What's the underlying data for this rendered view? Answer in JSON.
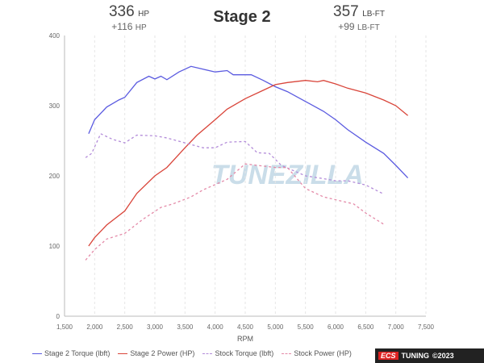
{
  "header": {
    "hp_value": "336",
    "hp_unit": "HP",
    "hp_gain": "+116",
    "hp_gain_unit": "HP",
    "title": "Stage 2",
    "tq_value": "357",
    "tq_unit": "LB-FT",
    "tq_gain": "+99",
    "tq_gain_unit": "LB-FT"
  },
  "watermark": "TUNEZILLA",
  "branding": {
    "logo": "ECS",
    "tuning": "TUNING",
    "copyright": "©2023"
  },
  "chart_data": {
    "type": "line",
    "title": "Stage 2",
    "xlabel": "RPM",
    "ylabel": "",
    "xlim": [
      1500,
      7500
    ],
    "ylim": [
      0,
      400
    ],
    "xticks": [
      1500,
      2000,
      2500,
      3000,
      3500,
      4000,
      4500,
      5000,
      5500,
      6000,
      6500,
      7000,
      7500
    ],
    "xtick_labels": [
      "1,500",
      "2,000",
      "2,500",
      "3,000",
      "3,500",
      "4,000",
      "4,500",
      "5,000",
      "5,500",
      "6,000",
      "6,500",
      "7,000",
      "7,500"
    ],
    "yticks": [
      0,
      100,
      200,
      300,
      400
    ],
    "grid": "vertical dashed",
    "legend": "bottom",
    "series": [
      {
        "name": "Stage 2 Torque (lbft)",
        "color": "#5b5be0",
        "dashed": false,
        "x": [
          1900,
          2000,
          2200,
          2400,
          2500,
          2700,
          2900,
          3000,
          3100,
          3200,
          3400,
          3600,
          3800,
          4000,
          4200,
          4300,
          4600,
          4800,
          5000,
          5200,
          5500,
          5800,
          6000,
          6200,
          6500,
          6800,
          7000,
          7200
        ],
        "y": [
          260,
          280,
          298,
          308,
          312,
          333,
          342,
          338,
          342,
          337,
          348,
          356,
          352,
          348,
          350,
          344,
          344,
          336,
          327,
          320,
          306,
          292,
          280,
          266,
          248,
          232,
          215,
          197
        ]
      },
      {
        "name": "Stage 2 Power (HP)",
        "color": "#d9453a",
        "dashed": false,
        "x": [
          1900,
          2000,
          2200,
          2500,
          2700,
          3000,
          3200,
          3500,
          3700,
          4000,
          4200,
          4500,
          4800,
          5000,
          5200,
          5500,
          5700,
          5800,
          6000,
          6200,
          6500,
          6800,
          7000,
          7200
        ],
        "y": [
          100,
          112,
          130,
          150,
          175,
          200,
          212,
          240,
          258,
          280,
          295,
          310,
          322,
          330,
          333,
          336,
          334,
          336,
          331,
          325,
          318,
          308,
          300,
          286
        ]
      },
      {
        "name": "Stock Torque (lbft)",
        "color": "#b38cd9",
        "dashed": true,
        "x": [
          1850,
          1950,
          2100,
          2300,
          2500,
          2700,
          3000,
          3200,
          3500,
          3800,
          4000,
          4200,
          4500,
          4700,
          4900,
          5100,
          5500,
          5800,
          6000,
          6200,
          6500,
          6800
        ],
        "y": [
          226,
          232,
          260,
          252,
          247,
          258,
          257,
          254,
          247,
          240,
          240,
          248,
          249,
          233,
          232,
          215,
          200,
          196,
          193,
          193,
          187,
          174
        ]
      },
      {
        "name": "Stock Power (HP)",
        "color": "#e48aa8",
        "dashed": true,
        "x": [
          1850,
          2000,
          2200,
          2500,
          2800,
          3100,
          3300,
          3600,
          3800,
          4200,
          4500,
          4700,
          5000,
          5200,
          5500,
          5800,
          6000,
          6300,
          6500,
          6800
        ],
        "y": [
          80,
          95,
          110,
          118,
          138,
          155,
          160,
          170,
          180,
          195,
          217,
          215,
          212,
          212,
          182,
          170,
          166,
          160,
          147,
          131
        ]
      }
    ]
  }
}
